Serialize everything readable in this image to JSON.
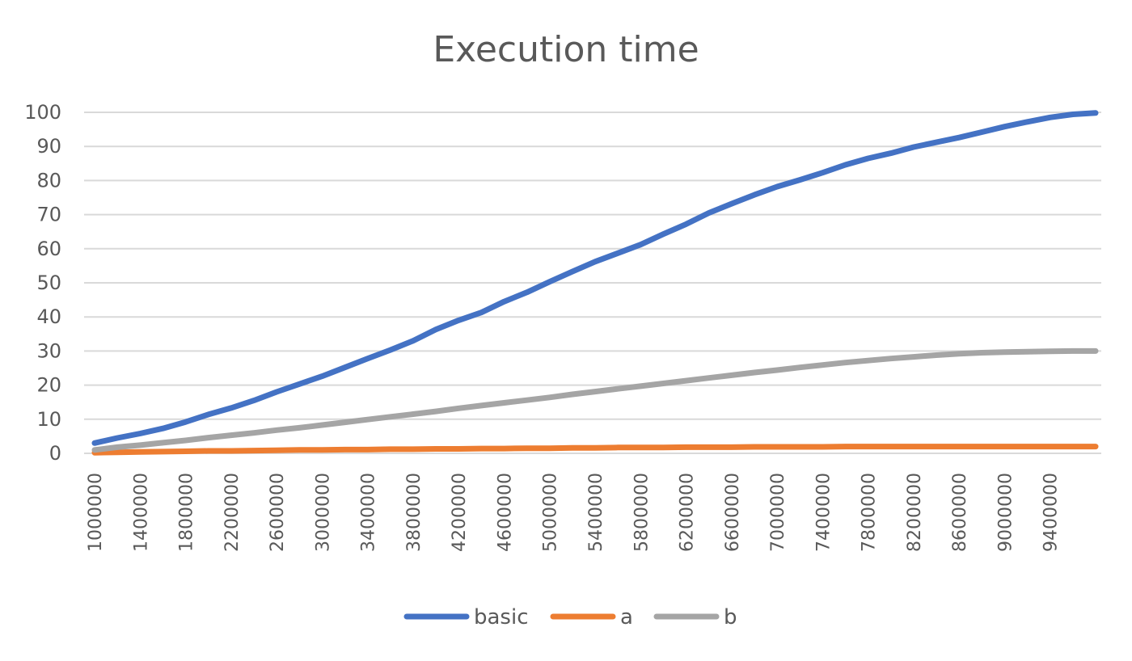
{
  "chart_data": {
    "type": "line",
    "title": "Execution time",
    "xlabel": "",
    "ylabel": "",
    "ylim": [
      0,
      100
    ],
    "yticks": [
      0,
      10,
      20,
      30,
      40,
      50,
      60,
      70,
      80,
      90,
      100
    ],
    "grid": true,
    "legend_position": "bottom",
    "x": [
      1000000,
      1200000,
      1400000,
      1600000,
      1800000,
      2000000,
      2200000,
      2400000,
      2600000,
      2800000,
      3000000,
      3200000,
      3400000,
      3600000,
      3800000,
      4000000,
      4200000,
      4400000,
      4600000,
      4800000,
      5000000,
      5200000,
      5400000,
      5600000,
      5800000,
      6000000,
      6200000,
      6400000,
      6600000,
      6800000,
      7000000,
      7200000,
      7400000,
      7600000,
      7800000,
      8000000,
      8200000,
      8400000,
      8600000,
      8800000,
      9000000,
      9200000,
      9400000,
      9600000,
      9800000
    ],
    "x_tick_labels": [
      "1000000",
      "1400000",
      "1800000",
      "2200000",
      "2600000",
      "3000000",
      "3400000",
      "3800000",
      "4200000",
      "4600000",
      "5000000",
      "5400000",
      "5800000",
      "6200000",
      "6600000",
      "7000000",
      "7400000",
      "7800000",
      "8200000",
      "8600000",
      "9000000",
      "9400000"
    ],
    "series": [
      {
        "name": "basic",
        "color": "#4472C4",
        "values": [
          3,
          4.5,
          5.8,
          7.3,
          9.2,
          11.4,
          13.3,
          15.5,
          18,
          20.3,
          22.6,
          25.2,
          27.8,
          30.3,
          33,
          36.3,
          39,
          41.3,
          44.5,
          47.2,
          50.3,
          53.3,
          56.2,
          58.7,
          61.2,
          64.3,
          67.2,
          70.5,
          73.2,
          75.8,
          78.2,
          80.2,
          82.3,
          84.6,
          86.5,
          88,
          89.8,
          91.2,
          92.6,
          94.2,
          95.8,
          97.2,
          98.5,
          99.4,
          99.8
        ]
      },
      {
        "name": "a",
        "color": "#ED7D31",
        "values": [
          0.2,
          0.3,
          0.4,
          0.5,
          0.6,
          0.7,
          0.7,
          0.8,
          0.9,
          1.0,
          1.0,
          1.1,
          1.1,
          1.2,
          1.2,
          1.3,
          1.3,
          1.4,
          1.4,
          1.5,
          1.5,
          1.6,
          1.6,
          1.7,
          1.7,
          1.7,
          1.8,
          1.8,
          1.8,
          1.9,
          1.9,
          1.9,
          1.9,
          2.0,
          2.0,
          2.0,
          2.0,
          2.0,
          2.0,
          2.0,
          2.0,
          2.0,
          2.0,
          2.0,
          2.0
        ]
      },
      {
        "name": "b",
        "color": "#A5A5A5",
        "values": [
          1,
          1.8,
          2.4,
          3.1,
          3.8,
          4.6,
          5.3,
          6.0,
          6.8,
          7.5,
          8.3,
          9.1,
          9.9,
          10.7,
          11.5,
          12.3,
          13.2,
          14.0,
          14.8,
          15.6,
          16.4,
          17.3,
          18.1,
          18.9,
          19.7,
          20.5,
          21.3,
          22.1,
          22.9,
          23.7,
          24.4,
          25.2,
          25.9,
          26.6,
          27.2,
          27.8,
          28.3,
          28.8,
          29.2,
          29.5,
          29.7,
          29.8,
          29.9,
          30.0,
          30.0
        ]
      }
    ]
  }
}
